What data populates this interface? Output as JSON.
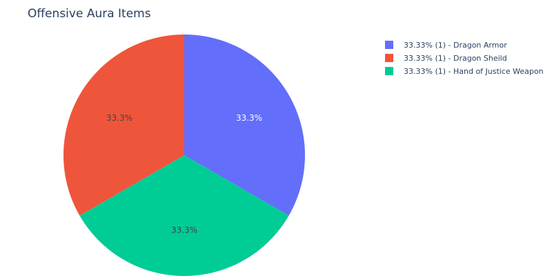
{
  "chart_data": {
    "type": "pie",
    "title": "Offensive Aura Items",
    "slices": [
      {
        "label": "Dragon Armor",
        "value": 1,
        "percent_label": "33.3%",
        "legend": "33.33% (1) - Dragon Armor",
        "color": "#636efa",
        "text_color": "#ffffff"
      },
      {
        "label": "Hand of Justice Weapon",
        "value": 1,
        "percent_label": "33.3%",
        "legend": "33.33% (1) - Hand of Justice Weapon",
        "color": "#00cc96",
        "text_color": "#444444"
      },
      {
        "label": "Dragon Sheild",
        "value": 1,
        "percent_label": "33.3%",
        "legend": "33.33% (1) - Dragon Sheild",
        "color": "#ef553b",
        "text_color": "#444444"
      }
    ],
    "legend_order": [
      0,
      2,
      1
    ],
    "start_angle_deg": 90,
    "direction": "clockwise",
    "legend_position": "top-right"
  }
}
